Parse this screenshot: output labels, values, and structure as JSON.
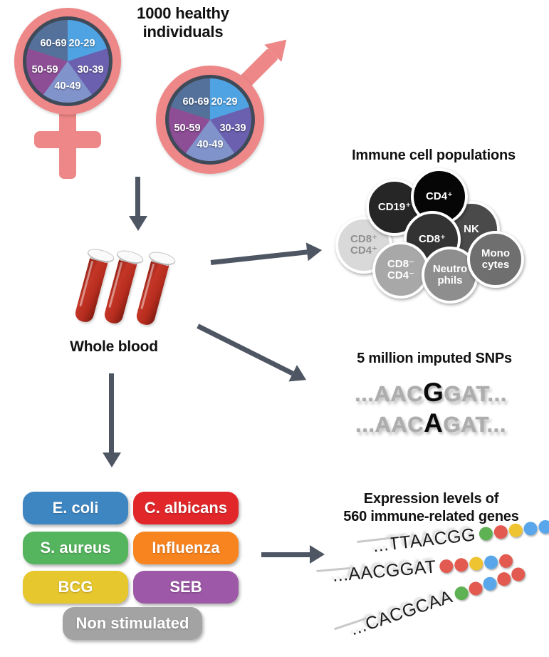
{
  "colors": {
    "symbol_pink": "#ee8787",
    "pie_ring": "#3f4a59",
    "arrow_gray": "#4e5663",
    "tube_red": "#b52c1e"
  },
  "header": {
    "title": "1000 healthy\nindividuals"
  },
  "demographics": {
    "slices": [
      {
        "label": "20-29",
        "color": "#4fa3e3"
      },
      {
        "label": "30-39",
        "color": "#6a60af"
      },
      {
        "label": "40-49",
        "color": "#8093ca"
      },
      {
        "label": "50-59",
        "color": "#8d4e96"
      },
      {
        "label": "60-69",
        "color": "#54719b"
      }
    ]
  },
  "blood": {
    "label": "Whole blood"
  },
  "immune_cells": {
    "title": "Immune cell populations",
    "cells": [
      {
        "label": "NK",
        "color": "#4a4a4a",
        "text": "#ffffff"
      },
      {
        "label": "CD8⁺\nCD4⁺",
        "color": "#d9d9d9",
        "text": "#8f8f8f"
      },
      {
        "label": "CD19⁺",
        "color": "#262626",
        "text": "#ffffff"
      },
      {
        "label": "CD4⁺",
        "color": "#060606",
        "text": "#ffffff"
      },
      {
        "label": "CD8⁺",
        "color": "#333333",
        "text": "#ffffff"
      },
      {
        "label": "CD8⁻\nCD4⁻",
        "color": "#a8a8a8",
        "text": "#ffffff"
      },
      {
        "label": "Neutro\nphils",
        "color": "#8e8e8e",
        "text": "#ffffff"
      },
      {
        "label": "Mono\ncytes",
        "color": "#6f6f6f",
        "text": "#ffffff"
      }
    ]
  },
  "snps": {
    "title": "5 million imputed SNPs",
    "sequences": [
      {
        "prefix": "...AAC",
        "variant": "G",
        "suffix": "GAT..."
      },
      {
        "prefix": "...AAC",
        "variant": "A",
        "suffix": "GAT..."
      }
    ]
  },
  "stimuli": {
    "items": [
      {
        "label": "E. coli",
        "color": "#3e86c2"
      },
      {
        "label": "C. albicans",
        "color": "#e2272a"
      },
      {
        "label": "S. aureus",
        "color": "#55b55e"
      },
      {
        "label": "Influenza",
        "color": "#f88420"
      },
      {
        "label": "BCG",
        "color": "#e7c72e"
      },
      {
        "label": "SEB",
        "color": "#9d58a7"
      },
      {
        "label": "Non stimulated",
        "color": "#a3a3a3"
      }
    ]
  },
  "expression": {
    "title": "Expression levels of\n560 immune-related genes",
    "dot_colors": {
      "green": "#5fb253",
      "red": "#e25a50",
      "yellow": "#eec431",
      "blue": "#59a7ea"
    },
    "rows": [
      {
        "sequence": "...TTAACGG",
        "dots": [
          "green",
          "red",
          "yellow",
          "blue",
          "blue"
        ]
      },
      {
        "sequence": "...AACGGAT",
        "dots": [
          "red",
          "red",
          "yellow",
          "blue",
          "red"
        ]
      },
      {
        "sequence": "...CACGCAA",
        "dots": [
          "green",
          "red",
          "blue",
          "red",
          "red"
        ]
      }
    ]
  }
}
